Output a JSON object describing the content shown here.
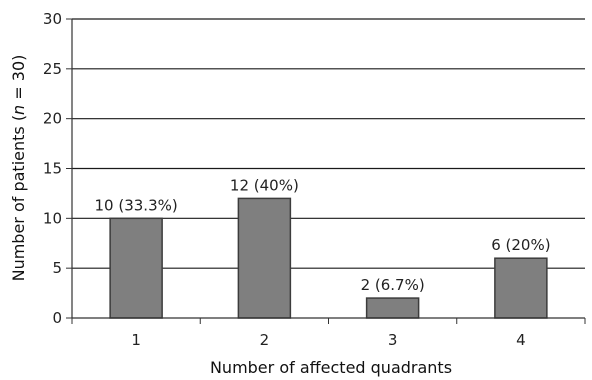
{
  "chart_data": {
    "type": "bar",
    "categories": [
      "1",
      "2",
      "3",
      "4"
    ],
    "values": [
      10,
      12,
      2,
      6
    ],
    "data_labels": [
      "10 (33.3%)",
      "12 (40%)",
      "2 (6.7%)",
      "6 (20%)"
    ],
    "xlabel": "Number of affected quadrants",
    "ylabel": "Number of patients (n = 30)",
    "ylim": [
      0,
      30
    ],
    "yticks": [
      0,
      5,
      10,
      15,
      20,
      25,
      30
    ],
    "grid": true,
    "legend": "none",
    "colors": {
      "bar_fill": "#7f7f7f",
      "bar_stroke": "#3c3c3c",
      "grid": "#1a1a1a",
      "axis": "#333333"
    }
  }
}
